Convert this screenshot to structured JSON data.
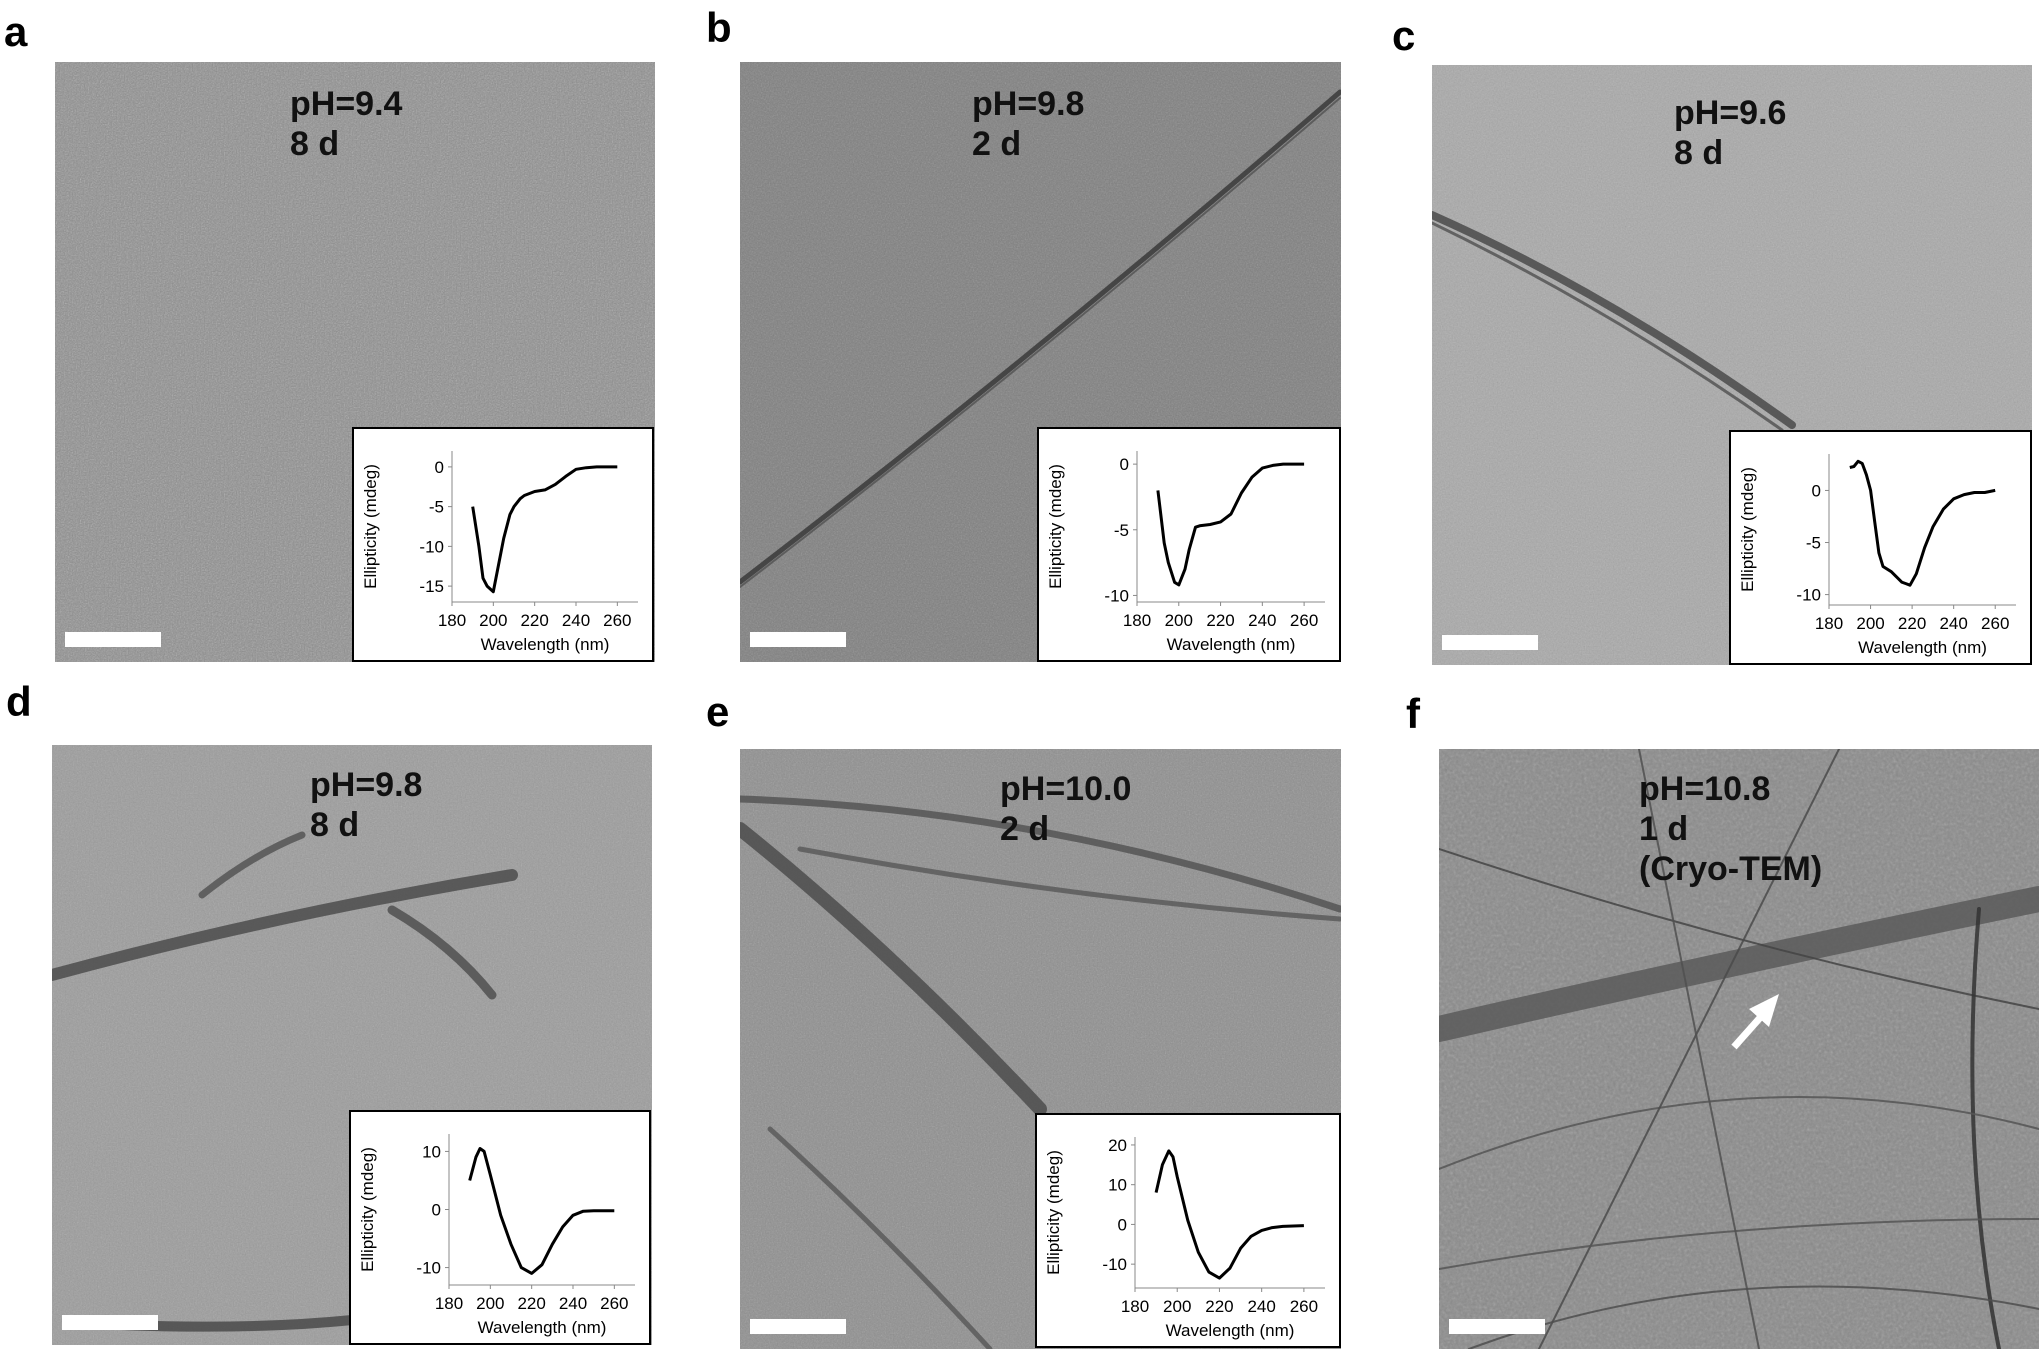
{
  "panels": [
    {
      "letter": "a",
      "lines": [
        "pH=9.4",
        "8 d"
      ],
      "tone": "#8e8e8e"
    },
    {
      "letter": "b",
      "lines": [
        "pH=9.8",
        "2 d"
      ],
      "tone": "#7f7f7f"
    },
    {
      "letter": "c",
      "lines": [
        "pH=9.6",
        "8 d"
      ],
      "tone": "#a9a9a9"
    },
    {
      "letter": "d",
      "lines": [
        "pH=9.8",
        "8 d"
      ],
      "tone": "#9c9c9c"
    },
    {
      "letter": "e",
      "lines": [
        "pH=10.0",
        "2 d"
      ],
      "tone": "#8f8f8f"
    },
    {
      "letter": "f",
      "lines": [
        "pH=10.8",
        "1 d",
        "(Cryo-TEM)"
      ],
      "tone": "#8a8a8a"
    }
  ],
  "chart_data": [
    {
      "panel": "a",
      "type": "line",
      "xlabel": "Wavelength (nm)",
      "ylabel": "Ellipticity (mdeg)",
      "xlim": [
        180,
        270
      ],
      "ylim": [
        -17,
        2
      ],
      "xticks": [
        180,
        200,
        220,
        240,
        260
      ],
      "yticks": [
        0,
        -5,
        -10,
        -15
      ],
      "x": [
        190,
        193,
        195,
        197,
        200,
        202,
        205,
        208,
        210,
        213,
        215,
        220,
        225,
        230,
        235,
        240,
        245,
        250,
        255,
        260
      ],
      "y": [
        -5,
        -10,
        -14,
        -15,
        -15.7,
        -13,
        -9,
        -6,
        -5,
        -4,
        -3.6,
        -3.1,
        -2.9,
        -2.2,
        -1.2,
        -0.3,
        -0.1,
        0,
        0,
        0
      ]
    },
    {
      "panel": "b",
      "type": "line",
      "xlabel": "Wavelength (nm)",
      "ylabel": "Ellipticity (mdeg)",
      "xlim": [
        180,
        270
      ],
      "ylim": [
        -10.5,
        1
      ],
      "xticks": [
        180,
        200,
        220,
        240,
        260
      ],
      "yticks": [
        0,
        -5,
        -10
      ],
      "x": [
        190,
        193,
        195,
        198,
        200,
        203,
        205,
        208,
        210,
        215,
        220,
        225,
        230,
        235,
        240,
        245,
        250,
        260
      ],
      "y": [
        -2,
        -6,
        -7.5,
        -9,
        -9.2,
        -8,
        -6.5,
        -4.8,
        -4.7,
        -4.6,
        -4.4,
        -3.8,
        -2.2,
        -1,
        -0.3,
        -0.1,
        0,
        0
      ]
    },
    {
      "panel": "c",
      "type": "line",
      "xlabel": "Wavelength (nm)",
      "ylabel": "Ellipticity (mdeg)",
      "xlim": [
        180,
        270
      ],
      "ylim": [
        -11,
        3.5
      ],
      "xticks": [
        180,
        200,
        220,
        240,
        260
      ],
      "yticks": [
        0,
        -5,
        -10
      ],
      "x": [
        190,
        192,
        194,
        196,
        198,
        200,
        202,
        204,
        206,
        210,
        215,
        219,
        222,
        226,
        230,
        235,
        240,
        245,
        250,
        255,
        260
      ],
      "y": [
        2.2,
        2.3,
        2.8,
        2.6,
        1.5,
        0,
        -3,
        -6,
        -7.3,
        -7.8,
        -8.8,
        -9.1,
        -8,
        -5.5,
        -3.5,
        -1.8,
        -0.8,
        -0.4,
        -0.2,
        -0.2,
        0
      ]
    },
    {
      "panel": "d",
      "type": "line",
      "xlabel": "Wavelength (nm)",
      "ylabel": "Ellipticity (mdeg)",
      "xlim": [
        180,
        270
      ],
      "ylim": [
        -13,
        13
      ],
      "xticks": [
        180,
        200,
        220,
        240,
        260
      ],
      "yticks": [
        10,
        0,
        -10
      ],
      "x": [
        190,
        193,
        195,
        197,
        200,
        205,
        210,
        215,
        220,
        225,
        230,
        235,
        240,
        245,
        250,
        255,
        260
      ],
      "y": [
        5,
        9,
        10.5,
        10,
        6,
        -1,
        -6,
        -10,
        -11,
        -9.5,
        -6,
        -3,
        -1,
        -0.3,
        -0.2,
        -0.2,
        -0.2
      ]
    },
    {
      "panel": "e",
      "type": "line",
      "xlabel": "Wavelength (nm)",
      "ylabel": "Ellipticity (mdeg)",
      "xlim": [
        180,
        270
      ],
      "ylim": [
        -16,
        22
      ],
      "xticks": [
        180,
        200,
        220,
        240,
        260
      ],
      "yticks": [
        20,
        10,
        0,
        -10
      ],
      "x": [
        190,
        193,
        196,
        198,
        200,
        205,
        210,
        215,
        220,
        225,
        230,
        235,
        240,
        245,
        250,
        260
      ],
      "y": [
        8,
        15,
        18.5,
        17,
        12,
        1,
        -7,
        -12,
        -13.5,
        -11,
        -6,
        -3,
        -1.5,
        -0.8,
        -0.5,
        -0.3
      ]
    }
  ]
}
